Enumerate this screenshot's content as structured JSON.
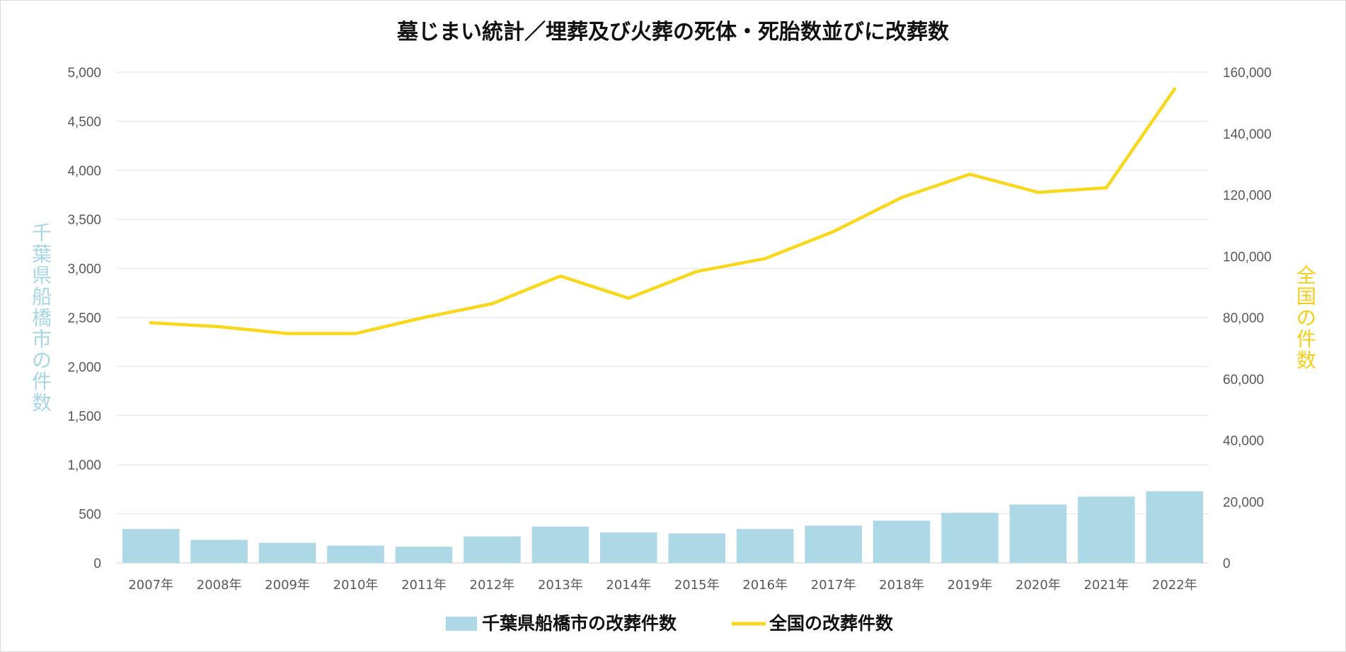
{
  "chart_data": {
    "type": "bar+line",
    "title": "墓じまい統計／埋葬及び火葬の死体・死胎数並びに改葬数",
    "categories": [
      "2007年",
      "2008年",
      "2009年",
      "2010年",
      "2011年",
      "2012年",
      "2013年",
      "2014年",
      "2015年",
      "2016年",
      "2017年",
      "2018年",
      "2019年",
      "2020年",
      "2021年",
      "2022年"
    ],
    "series": [
      {
        "name": "千葉県船橋市の改葬件数",
        "type": "bar",
        "axis": "left",
        "color": "#add8e6",
        "values": [
          345,
          235,
          205,
          175,
          165,
          270,
          370,
          310,
          300,
          345,
          380,
          430,
          510,
          595,
          675,
          730
        ]
      },
      {
        "name": "全国の改葬件数",
        "type": "line",
        "axis": "right",
        "color": "#f9d71c",
        "values": [
          78300,
          77000,
          74800,
          74800,
          80000,
          84500,
          93500,
          86300,
          95000,
          99200,
          108000,
          119100,
          126700,
          120800,
          122300,
          154500
        ]
      }
    ],
    "ylabel_left": "千葉県船橋市の件数",
    "ylabel_right": "全国の件数",
    "ylim_left": [
      0,
      5000
    ],
    "ylim_right": [
      0,
      160000
    ],
    "yticks_left": [
      0,
      500,
      1000,
      1500,
      2000,
      2500,
      3000,
      3500,
      4000,
      4500,
      5000
    ],
    "yticks_left_labels": [
      "0",
      "500",
      "1,000",
      "1,500",
      "2,000",
      "2,500",
      "3,000",
      "3,500",
      "4,000",
      "4,500",
      "5,000"
    ],
    "yticks_right": [
      0,
      20000,
      40000,
      60000,
      80000,
      100000,
      120000,
      140000,
      160000
    ],
    "yticks_right_labels": [
      "0",
      "20,000",
      "40,000",
      "60,000",
      "80,000",
      "100,000",
      "120,000",
      "140,000",
      "160,000"
    ],
    "grid": true,
    "legend_position": "bottom"
  }
}
